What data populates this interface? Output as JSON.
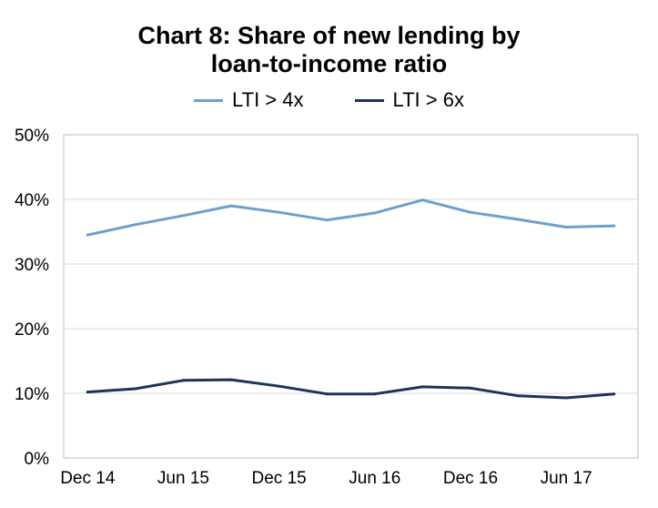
{
  "chart_data": {
    "type": "line",
    "title": [
      "Chart 8: Share of new lending by",
      "loan-to-income ratio"
    ],
    "xlabel": "",
    "ylabel": "",
    "x": [
      "Dec 14",
      "Mar 15",
      "Jun 15",
      "Sep 15",
      "Dec 15",
      "Mar 16",
      "Jun 16",
      "Sep 16",
      "Dec 16",
      "Mar 17",
      "Jun 17",
      "Sep 17"
    ],
    "tick_labels": [
      "Dec 14",
      "Jun 15",
      "Dec 15",
      "Jun 16",
      "Dec 16",
      "Jun 17"
    ],
    "y_ticks": [
      "0%",
      "10%",
      "20%",
      "30%",
      "40%",
      "50%"
    ],
    "ylim": [
      0,
      50
    ],
    "grid": true,
    "legend_position": "top-center",
    "series": [
      {
        "name": "LTI > 4x",
        "color": "#6FA0CC",
        "values": [
          34.5,
          36.1,
          37.5,
          39.0,
          38.0,
          36.8,
          37.9,
          39.9,
          38.0,
          36.9,
          35.7,
          35.9
        ]
      },
      {
        "name": "LTI > 6x",
        "color": "#1C3557",
        "values": [
          10.2,
          10.7,
          12.0,
          12.1,
          11.1,
          9.9,
          9.9,
          11.0,
          10.8,
          9.6,
          9.3,
          9.9
        ]
      }
    ]
  }
}
